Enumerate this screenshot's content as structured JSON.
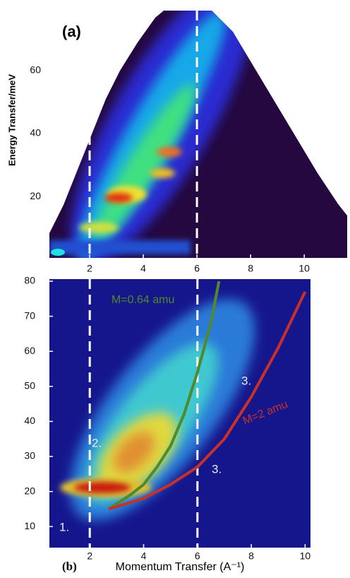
{
  "chart_data": [
    {
      "type": "heatmap",
      "panel_label": "(a)",
      "y_label": "Energy Transfer/meV",
      "xlim": [
        0.5,
        11.6
      ],
      "ylim": [
        0.5,
        79
      ],
      "xticks": [
        2,
        4,
        6,
        8,
        10
      ],
      "yticks": [
        20,
        40,
        60
      ],
      "vlines": [
        2,
        6
      ]
    },
    {
      "type": "heatmap",
      "panel_label": "(b)",
      "x_label": "Momentum Transfer (A⁻¹)",
      "xlim": [
        0.5,
        10.2
      ],
      "ylim": [
        4,
        80.6
      ],
      "xticks": [
        2,
        4,
        6,
        8,
        10
      ],
      "yticks": [
        10,
        20,
        30,
        40,
        50,
        60,
        70,
        80
      ],
      "vlines": [
        2,
        6
      ],
      "series": [
        {
          "name": "M=0.64 amu",
          "color": "#4f8a2c",
          "x": [
            2.7,
            3.5,
            4,
            4.5,
            5,
            5.5,
            6,
            6.5,
            6.8
          ],
          "values": [
            15,
            19,
            22,
            27,
            33,
            42,
            54,
            68,
            80
          ]
        },
        {
          "name": "M=2 amu",
          "color": "#c8302a",
          "x": [
            2.7,
            4,
            5,
            6,
            7,
            8,
            9,
            10
          ],
          "values": [
            15,
            18,
            22,
            27,
            35,
            47,
            61,
            77
          ]
        }
      ],
      "annotations": [
        "1.",
        "2.",
        "3.",
        "3."
      ]
    }
  ]
}
